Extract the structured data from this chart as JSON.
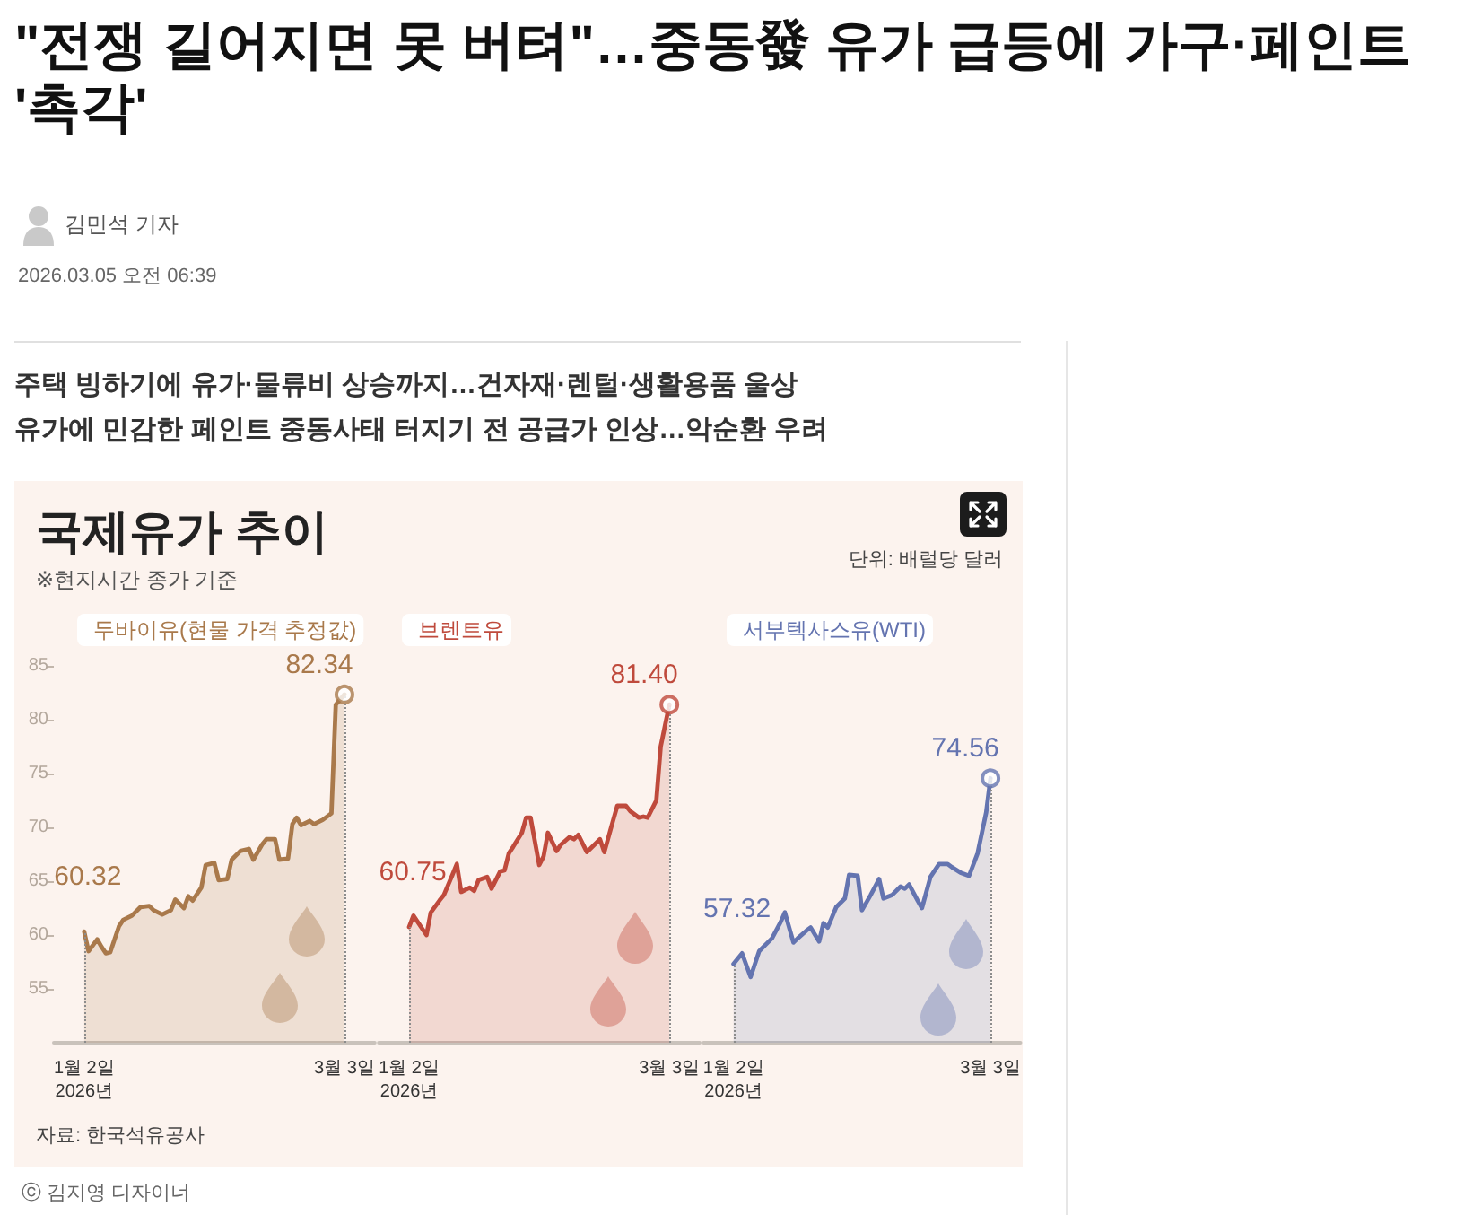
{
  "chart_data": [
    {
      "type": "area",
      "title": "국제유가 추이",
      "subtitle": "※현지시간 종가 기준",
      "annotations": [
        "\"전쟁 길어지면 못 버텨\"…중동發 유가 급등에 가구·페인트 '촉각'",
        "김민석 기자",
        "2026.03.05 오전 06:39",
        "주택 빙하기에 유가·물류비 상승까지…건자재·렌털·생활용품 울상",
        "유가에 민감한 페인트 중동사태 터지기 전 공급가 인상…악순환 우려",
        "단위: 배럴당 달러",
        "자료: 한국석유공사",
        "ⓒ 김지영 디자이너"
      ],
      "xlim": [
        "2025-12-26",
        "2026-03-10"
      ],
      "xticks": [
        {
          "value": "2026-01-02",
          "label": "1월 2일\n2026년"
        },
        {
          "value": "2026-03-03",
          "label": "3월 3일"
        }
      ],
      "ylim": [
        50,
        85
      ],
      "yticks": [
        55,
        60,
        65,
        70,
        75,
        80,
        85
      ],
      "legend": "top",
      "marker": "none",
      "ref_lines": [
        {
          "axis": "x",
          "value": "2026-01-02",
          "color": "#8c8c8c",
          "line_style": "dotted"
        },
        {
          "axis": "x",
          "value": "2026-03-03",
          "color": "#8c8c8c",
          "line_style": "dotted"
        }
      ],
      "series": [
        {
          "name": "두바이유(현물 가격 추정값)",
          "color": "#a9794b",
          "x": [
            "2026-01-02",
            "2026-01-03",
            "2026-01-05",
            "2026-01-06",
            "2026-01-07",
            "2026-01-08",
            "2026-01-10",
            "2026-01-11",
            "2026-01-13",
            "2026-01-15",
            "2026-01-17",
            "2026-01-18",
            "2026-01-20",
            "2026-01-22",
            "2026-01-23",
            "2026-01-25",
            "2026-01-26",
            "2026-01-27",
            "2026-01-29",
            "2026-01-30",
            "2026-02-01",
            "2026-02-02",
            "2026-02-04",
            "2026-02-05",
            "2026-02-07",
            "2026-02-09",
            "2026-02-10",
            "2026-02-12",
            "2026-02-13",
            "2026-02-15",
            "2026-02-16",
            "2026-02-18",
            "2026-02-19",
            "2026-02-20",
            "2026-02-21",
            "2026-02-23",
            "2026-02-24",
            "2026-02-26",
            "2026-02-28",
            "2026-03-01",
            "2026-03-03"
          ],
          "values": [
            60.32,
            58.5,
            59.6,
            58.9,
            58.3,
            58.4,
            60.8,
            61.4,
            61.8,
            62.6,
            62.7,
            62.3,
            61.9,
            62.3,
            63.3,
            62.5,
            63.6,
            63.2,
            64.4,
            66.5,
            66.7,
            65.1,
            65.2,
            67.0,
            67.8,
            68.0,
            67.0,
            68.4,
            68.9,
            68.9,
            67.0,
            67.1,
            70.3,
            70.9,
            70.2,
            70.6,
            70.3,
            70.7,
            71.3,
            81.4,
            82.34
          ],
          "value_labels": [
            "60.32",
            null,
            null,
            null,
            null,
            null,
            null,
            null,
            null,
            null,
            null,
            null,
            null,
            null,
            null,
            null,
            null,
            null,
            null,
            null,
            null,
            null,
            null,
            null,
            null,
            null,
            null,
            null,
            null,
            null,
            null,
            null,
            null,
            null,
            null,
            null,
            null,
            null,
            null,
            null,
            "82.34"
          ]
        },
        {
          "type": "scatter",
          "marker": "circle",
          "color": "#a9794b",
          "x": [
            "2026-03-03"
          ],
          "values": [
            82.34
          ]
        }
      ]
    },
    {
      "type": "area",
      "xlim": [
        "2025-12-26",
        "2026-03-10"
      ],
      "xticks": [
        {
          "value": "2026-01-02",
          "label": "1월 2일\n2026년"
        },
        {
          "value": "2026-03-03",
          "label": "3월 3일"
        }
      ],
      "ylim": [
        50,
        85
      ],
      "yticks": [
        55,
        60,
        65,
        70,
        75,
        80,
        85
      ],
      "tick_labels": "x",
      "legend": "top",
      "marker": "none",
      "ref_lines": [
        {
          "axis": "x",
          "value": "2026-01-02",
          "color": "#8c8c8c",
          "line_style": "dotted"
        },
        {
          "axis": "x",
          "value": "2026-03-03",
          "color": "#8c8c8c",
          "line_style": "dotted"
        }
      ],
      "series": [
        {
          "name": "브렌트유",
          "color": "#bf4a3c",
          "x": [
            "2026-01-02",
            "2026-01-03",
            "2026-01-06",
            "2026-01-07",
            "2026-01-09",
            "2026-01-10",
            "2026-01-12",
            "2026-01-13",
            "2026-01-14",
            "2026-01-16",
            "2026-01-17",
            "2026-01-18",
            "2026-01-20",
            "2026-01-21",
            "2026-01-23",
            "2026-01-24",
            "2026-01-25",
            "2026-01-26",
            "2026-01-28",
            "2026-01-29",
            "2026-01-30",
            "2026-02-01",
            "2026-02-02",
            "2026-02-03",
            "2026-02-05",
            "2026-02-06",
            "2026-02-08",
            "2026-02-09",
            "2026-02-10",
            "2026-02-12",
            "2026-02-13",
            "2026-02-15",
            "2026-02-16",
            "2026-02-18",
            "2026-02-19",
            "2026-02-21",
            "2026-02-22",
            "2026-02-24",
            "2026-02-25",
            "2026-02-26",
            "2026-02-28",
            "2026-03-01",
            "2026-03-03"
          ],
          "values": [
            60.75,
            61.8,
            60.0,
            62.1,
            63.2,
            63.7,
            65.6,
            66.6,
            64.0,
            64.4,
            64.1,
            65.1,
            65.4,
            64.3,
            65.9,
            66.0,
            67.6,
            68.2,
            69.5,
            70.9,
            70.9,
            66.5,
            67.3,
            69.5,
            67.8,
            68.4,
            69.1,
            68.9,
            69.3,
            67.7,
            68.1,
            68.9,
            67.7,
            70.6,
            72.0,
            72.0,
            71.5,
            70.9,
            71.0,
            70.9,
            72.5,
            77.5,
            81.4
          ],
          "value_labels": [
            "60.75",
            null,
            null,
            null,
            null,
            null,
            null,
            null,
            null,
            null,
            null,
            null,
            null,
            null,
            null,
            null,
            null,
            null,
            null,
            null,
            null,
            null,
            null,
            null,
            null,
            null,
            null,
            null,
            null,
            null,
            null,
            null,
            null,
            null,
            null,
            null,
            null,
            null,
            null,
            null,
            null,
            null,
            "81.40"
          ]
        },
        {
          "type": "scatter",
          "marker": "circle",
          "color": "#bf4a3c",
          "x": [
            "2026-03-03"
          ],
          "values": [
            81.4
          ]
        }
      ]
    },
    {
      "type": "area",
      "xlim": [
        "2025-12-26",
        "2026-03-10"
      ],
      "xticks": [
        {
          "value": "2026-01-02",
          "label": "1월 2일\n2026년"
        },
        {
          "value": "2026-03-03",
          "label": "3월 3일"
        }
      ],
      "ylim": [
        50,
        85
      ],
      "yticks": [
        55,
        60,
        65,
        70,
        75,
        80,
        85
      ],
      "tick_labels": "x",
      "legend": "top",
      "marker": "none",
      "ref_lines": [
        {
          "axis": "x",
          "value": "2026-01-02",
          "color": "#8c8c8c",
          "line_style": "dotted"
        },
        {
          "axis": "x",
          "value": "2026-03-03",
          "color": "#8c8c8c",
          "line_style": "dotted"
        }
      ],
      "series": [
        {
          "name": "서부텍사스유(WTI)",
          "color": "#6474b0",
          "x": [
            "2026-01-02",
            "2026-01-04",
            "2026-01-06",
            "2026-01-08",
            "2026-01-10",
            "2026-01-11",
            "2026-01-13",
            "2026-01-14",
            "2026-01-16",
            "2026-01-17",
            "2026-01-19",
            "2026-01-20",
            "2026-01-22",
            "2026-01-23",
            "2026-01-24",
            "2026-01-26",
            "2026-01-28",
            "2026-01-29",
            "2026-01-31",
            "2026-02-01",
            "2026-02-03",
            "2026-02-05",
            "2026-02-06",
            "2026-02-08",
            "2026-02-10",
            "2026-02-11",
            "2026-02-12",
            "2026-02-14",
            "2026-02-15",
            "2026-02-17",
            "2026-02-19",
            "2026-02-21",
            "2026-02-22",
            "2026-02-24",
            "2026-02-26",
            "2026-02-28",
            "2026-03-02",
            "2026-03-03"
          ],
          "values": [
            57.32,
            58.3,
            56.1,
            58.5,
            59.3,
            59.7,
            61.2,
            62.1,
            59.3,
            59.7,
            60.4,
            60.7,
            59.4,
            61.1,
            60.7,
            62.6,
            63.4,
            65.6,
            65.5,
            62.3,
            63.7,
            65.2,
            63.4,
            63.7,
            64.5,
            64.3,
            64.7,
            63.2,
            62.5,
            65.4,
            66.6,
            66.6,
            66.3,
            65.8,
            65.5,
            67.6,
            71.4,
            74.56
          ],
          "value_labels": [
            "57.32",
            null,
            null,
            null,
            null,
            null,
            null,
            null,
            null,
            null,
            null,
            null,
            null,
            null,
            null,
            null,
            null,
            null,
            null,
            null,
            null,
            null,
            null,
            null,
            null,
            null,
            null,
            null,
            null,
            null,
            null,
            null,
            null,
            null,
            null,
            null,
            null,
            "74.56"
          ]
        },
        {
          "type": "scatter",
          "marker": "circle",
          "color": "#6474b0",
          "x": [
            "2026-03-03"
          ],
          "values": [
            74.56
          ]
        }
      ]
    }
  ]
}
